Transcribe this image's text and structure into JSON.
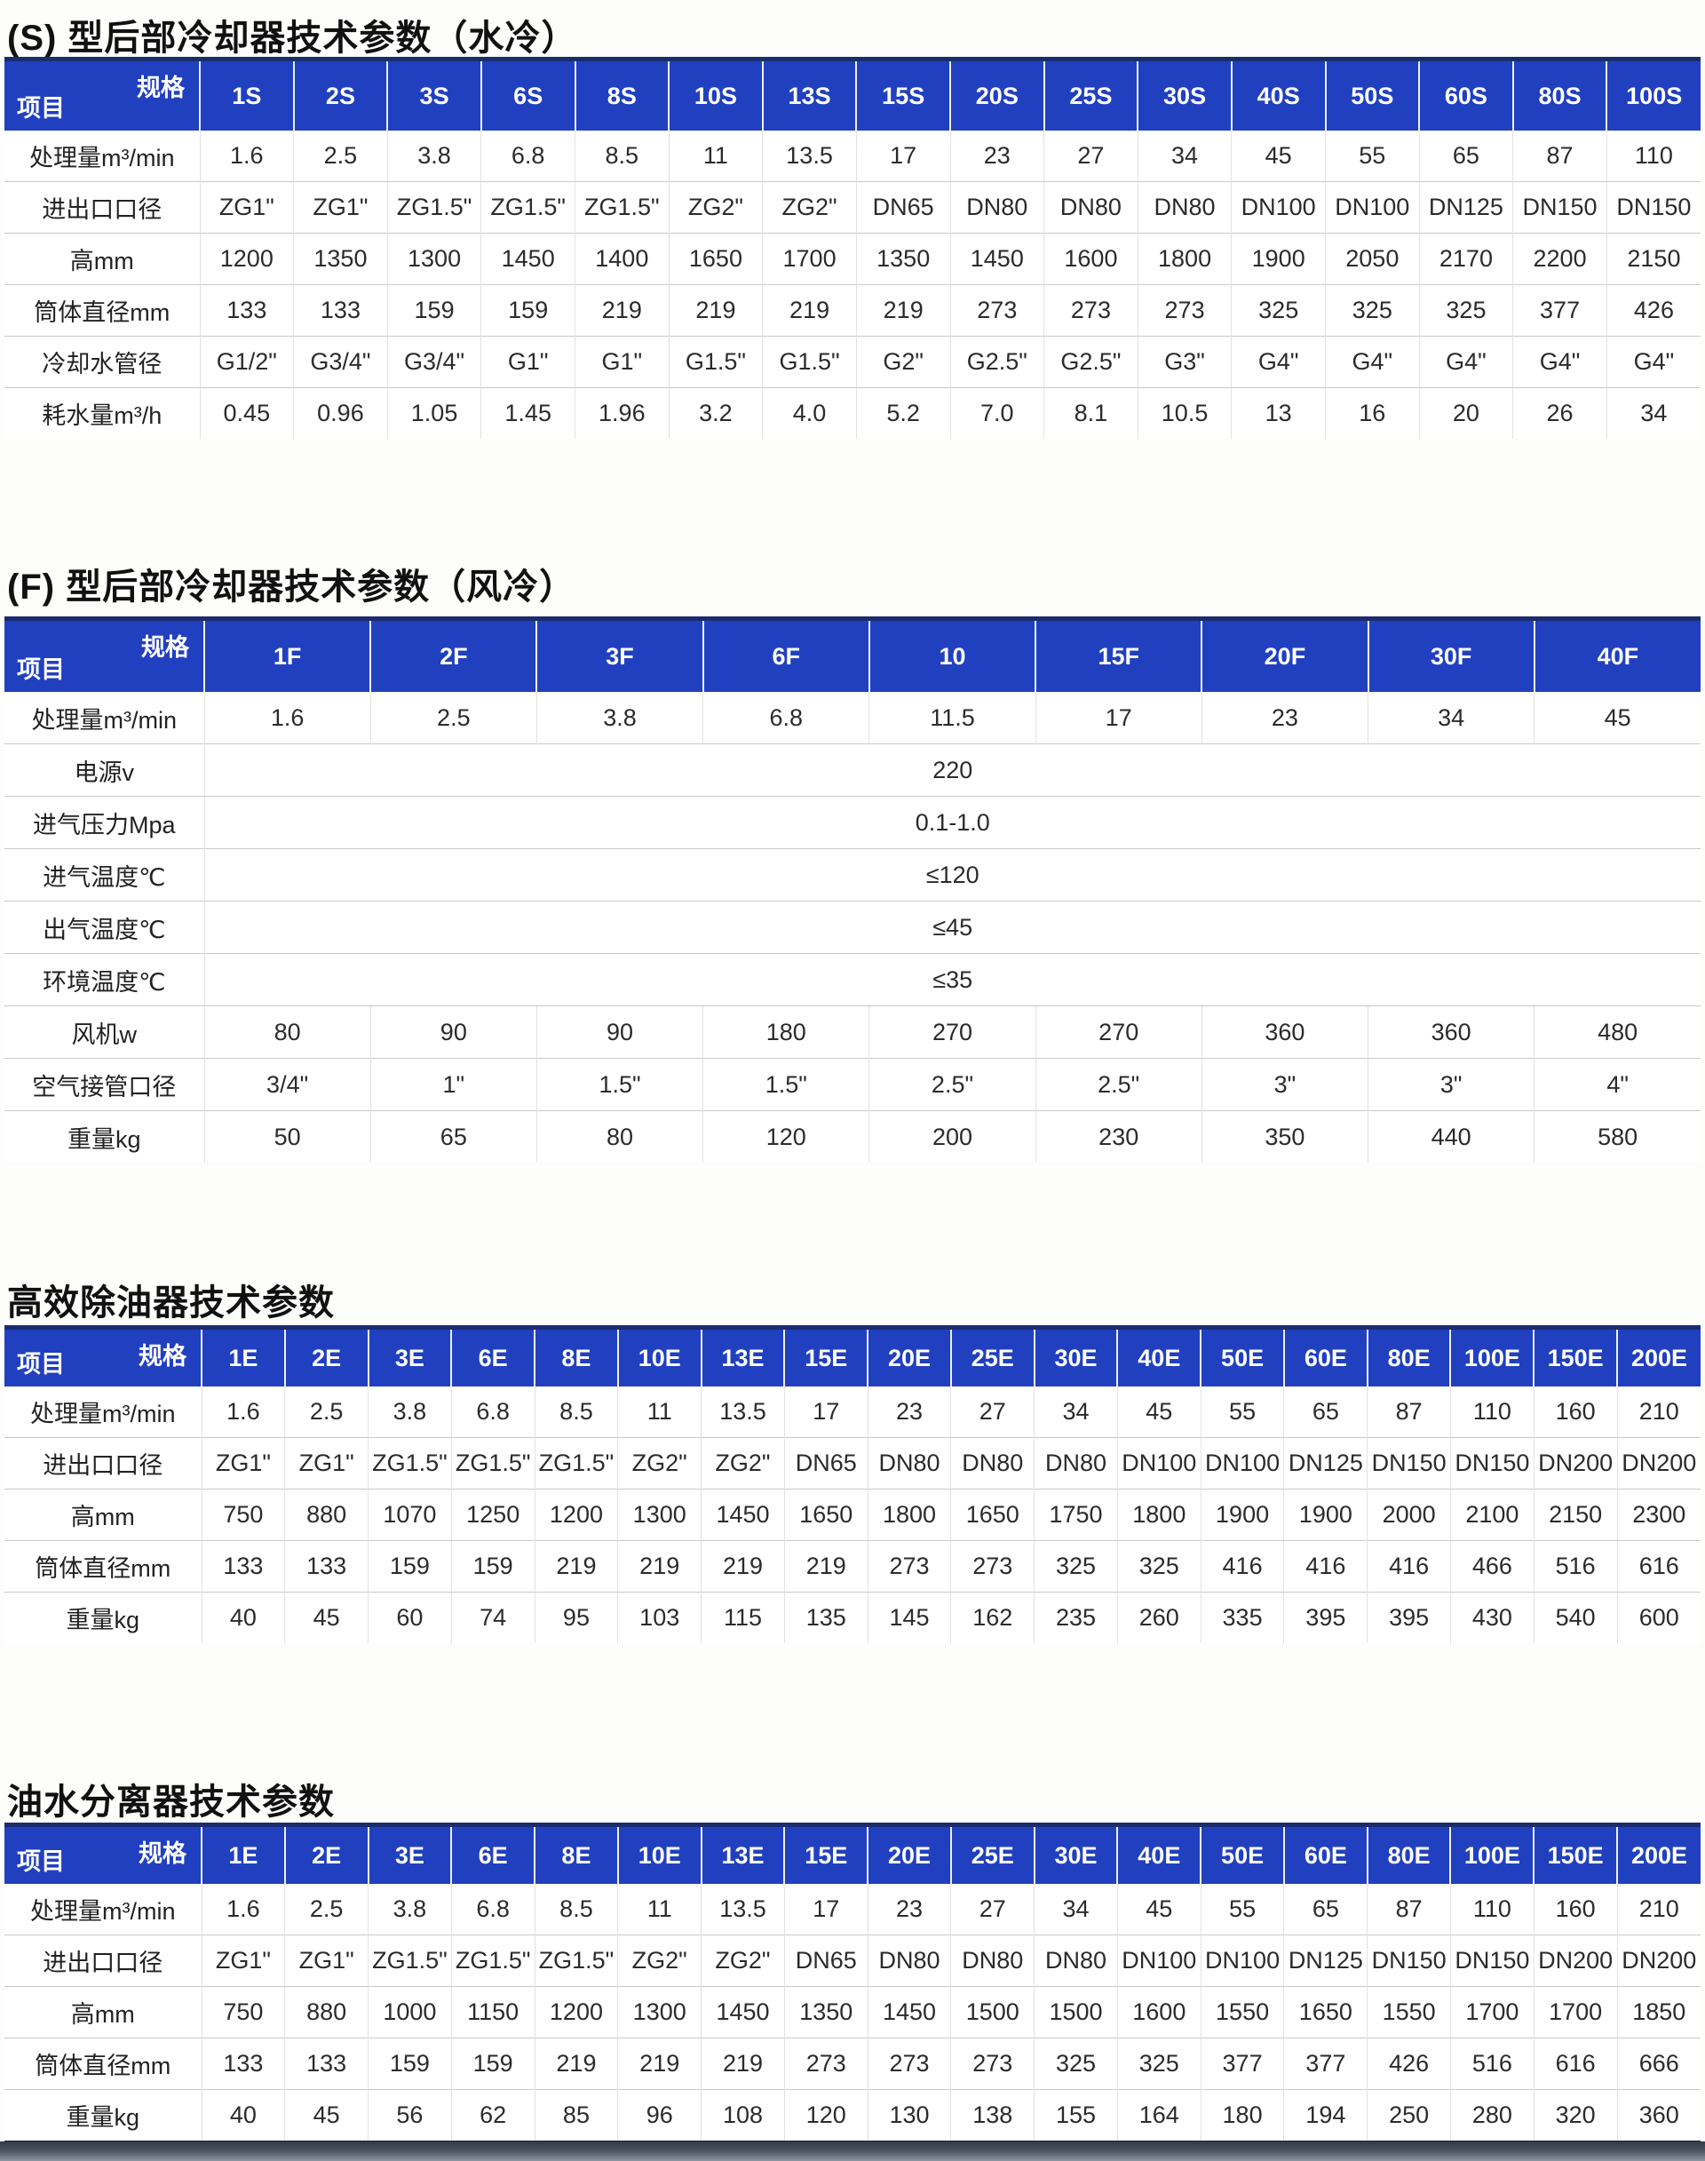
{
  "page": {
    "accent_blue": "#2140c0",
    "corner": {
      "spec": "规格",
      "item": "项目"
    }
  },
  "tables": [
    {
      "id": "s-type-water-cooled",
      "title": "(S) 型后部冷却器技术参数（水冷）",
      "columns": [
        "1S",
        "2S",
        "3S",
        "6S",
        "8S",
        "10S",
        "13S",
        "15S",
        "20S",
        "25S",
        "30S",
        "40S",
        "50S",
        "60S",
        "80S",
        "100S"
      ],
      "rows": [
        {
          "label": "处理量m³/min",
          "values": [
            "1.6",
            "2.5",
            "3.8",
            "6.8",
            "8.5",
            "11",
            "13.5",
            "17",
            "23",
            "27",
            "34",
            "45",
            "55",
            "65",
            "87",
            "110"
          ]
        },
        {
          "label": "进出口口径",
          "values": [
            "ZG1\"",
            "ZG1\"",
            "ZG1.5\"",
            "ZG1.5\"",
            "ZG1.5\"",
            "ZG2\"",
            "ZG2\"",
            "DN65",
            "DN80",
            "DN80",
            "DN80",
            "DN100",
            "DN100",
            "DN125",
            "DN150",
            "DN150"
          ]
        },
        {
          "label": "高mm",
          "values": [
            "1200",
            "1350",
            "1300",
            "1450",
            "1400",
            "1650",
            "1700",
            "1350",
            "1450",
            "1600",
            "1800",
            "1900",
            "2050",
            "2170",
            "2200",
            "2150"
          ]
        },
        {
          "label": "筒体直径mm",
          "values": [
            "133",
            "133",
            "159",
            "159",
            "219",
            "219",
            "219",
            "219",
            "273",
            "273",
            "273",
            "325",
            "325",
            "325",
            "377",
            "426"
          ]
        },
        {
          "label": "冷却水管径",
          "values": [
            "G1/2\"",
            "G3/4\"",
            "G3/4\"",
            "G1\"",
            "G1\"",
            "G1.5\"",
            "G1.5\"",
            "G2\"",
            "G2.5\"",
            "G2.5\"",
            "G3\"",
            "G4\"",
            "G4\"",
            "G4\"",
            "G4\"",
            "G4\""
          ]
        },
        {
          "label": "耗水量m³/h",
          "values": [
            "0.45",
            "0.96",
            "1.05",
            "1.45",
            "1.96",
            "3.2",
            "4.0",
            "5.2",
            "7.0",
            "8.1",
            "10.5",
            "13",
            "16",
            "20",
            "26",
            "34"
          ]
        }
      ]
    },
    {
      "id": "f-type-air-cooled",
      "title": "(F) 型后部冷却器技术参数（风冷）",
      "columns": [
        "1F",
        "2F",
        "3F",
        "6F",
        "10",
        "15F",
        "20F",
        "30F",
        "40F"
      ],
      "rows": [
        {
          "label": "处理量m³/min",
          "values": [
            "1.6",
            "2.5",
            "3.8",
            "6.8",
            "11.5",
            "17",
            "23",
            "34",
            "45"
          ]
        },
        {
          "label": "电源v",
          "merged": "220"
        },
        {
          "label": "进气压力Mpa",
          "merged": "0.1-1.0"
        },
        {
          "label": "进气温度℃",
          "merged": "≤120"
        },
        {
          "label": "出气温度℃",
          "merged": "≤45"
        },
        {
          "label": "环境温度℃",
          "merged": "≤35"
        },
        {
          "label": "风机w",
          "values": [
            "80",
            "90",
            "90",
            "180",
            "270",
            "270",
            "360",
            "360",
            "480"
          ]
        },
        {
          "label": "空气接管口径",
          "values": [
            "3/4\"",
            "1\"",
            "1.5\"",
            "1.5\"",
            "2.5\"",
            "2.5\"",
            "3\"",
            "3\"",
            "4\""
          ]
        },
        {
          "label": "重量kg",
          "values": [
            "50",
            "65",
            "80",
            "120",
            "200",
            "230",
            "350",
            "440",
            "580"
          ]
        }
      ]
    },
    {
      "id": "oil-remover",
      "title": "高效除油器技术参数",
      "columns": [
        "1E",
        "2E",
        "3E",
        "6E",
        "8E",
        "10E",
        "13E",
        "15E",
        "20E",
        "25E",
        "30E",
        "40E",
        "50E",
        "60E",
        "80E",
        "100E",
        "150E",
        "200E"
      ],
      "rows": [
        {
          "label": "处理量m³/min",
          "values": [
            "1.6",
            "2.5",
            "3.8",
            "6.8",
            "8.5",
            "11",
            "13.5",
            "17",
            "23",
            "27",
            "34",
            "45",
            "55",
            "65",
            "87",
            "110",
            "160",
            "210"
          ]
        },
        {
          "label": "进出口口径",
          "values": [
            "ZG1\"",
            "ZG1\"",
            "ZG1.5\"",
            "ZG1.5\"",
            "ZG1.5\"",
            "ZG2\"",
            "ZG2\"",
            "DN65",
            "DN80",
            "DN80",
            "DN80",
            "DN100",
            "DN100",
            "DN125",
            "DN150",
            "DN150",
            "DN200",
            "DN200"
          ]
        },
        {
          "label": "高mm",
          "values": [
            "750",
            "880",
            "1070",
            "1250",
            "1200",
            "1300",
            "1450",
            "1650",
            "1800",
            "1650",
            "1750",
            "1800",
            "1900",
            "1900",
            "2000",
            "2100",
            "2150",
            "2300"
          ]
        },
        {
          "label": "筒体直径mm",
          "values": [
            "133",
            "133",
            "159",
            "159",
            "219",
            "219",
            "219",
            "219",
            "273",
            "273",
            "325",
            "325",
            "416",
            "416",
            "416",
            "466",
            "516",
            "616"
          ]
        },
        {
          "label": "重量kg",
          "values": [
            "40",
            "45",
            "60",
            "74",
            "95",
            "103",
            "115",
            "135",
            "145",
            "162",
            "235",
            "260",
            "335",
            "395",
            "395",
            "430",
            "540",
            "600"
          ]
        }
      ]
    },
    {
      "id": "oil-water-separator",
      "title": "油水分离器技术参数",
      "columns": [
        "1E",
        "2E",
        "3E",
        "6E",
        "8E",
        "10E",
        "13E",
        "15E",
        "20E",
        "25E",
        "30E",
        "40E",
        "50E",
        "60E",
        "80E",
        "100E",
        "150E",
        "200E"
      ],
      "rows": [
        {
          "label": "处理量m³/min",
          "values": [
            "1.6",
            "2.5",
            "3.8",
            "6.8",
            "8.5",
            "11",
            "13.5",
            "17",
            "23",
            "27",
            "34",
            "45",
            "55",
            "65",
            "87",
            "110",
            "160",
            "210"
          ]
        },
        {
          "label": "进出口口径",
          "values": [
            "ZG1\"",
            "ZG1\"",
            "ZG1.5\"",
            "ZG1.5\"",
            "ZG1.5\"",
            "ZG2\"",
            "ZG2\"",
            "DN65",
            "DN80",
            "DN80",
            "DN80",
            "DN100",
            "DN100",
            "DN125",
            "DN150",
            "DN150",
            "DN200",
            "DN200"
          ]
        },
        {
          "label": "高mm",
          "values": [
            "750",
            "880",
            "1000",
            "1150",
            "1200",
            "1300",
            "1450",
            "1350",
            "1450",
            "1500",
            "1500",
            "1600",
            "1550",
            "1650",
            "1550",
            "1700",
            "1700",
            "1850"
          ]
        },
        {
          "label": "筒体直径mm",
          "values": [
            "133",
            "133",
            "159",
            "159",
            "219",
            "219",
            "219",
            "273",
            "273",
            "273",
            "325",
            "325",
            "377",
            "377",
            "426",
            "516",
            "616",
            "666"
          ]
        },
        {
          "label": "重量kg",
          "values": [
            "40",
            "45",
            "56",
            "62",
            "85",
            "96",
            "108",
            "120",
            "130",
            "138",
            "155",
            "164",
            "180",
            "194",
            "250",
            "280",
            "320",
            "360"
          ]
        }
      ]
    }
  ],
  "layout_labels": {
    "bottom_strip": ""
  }
}
